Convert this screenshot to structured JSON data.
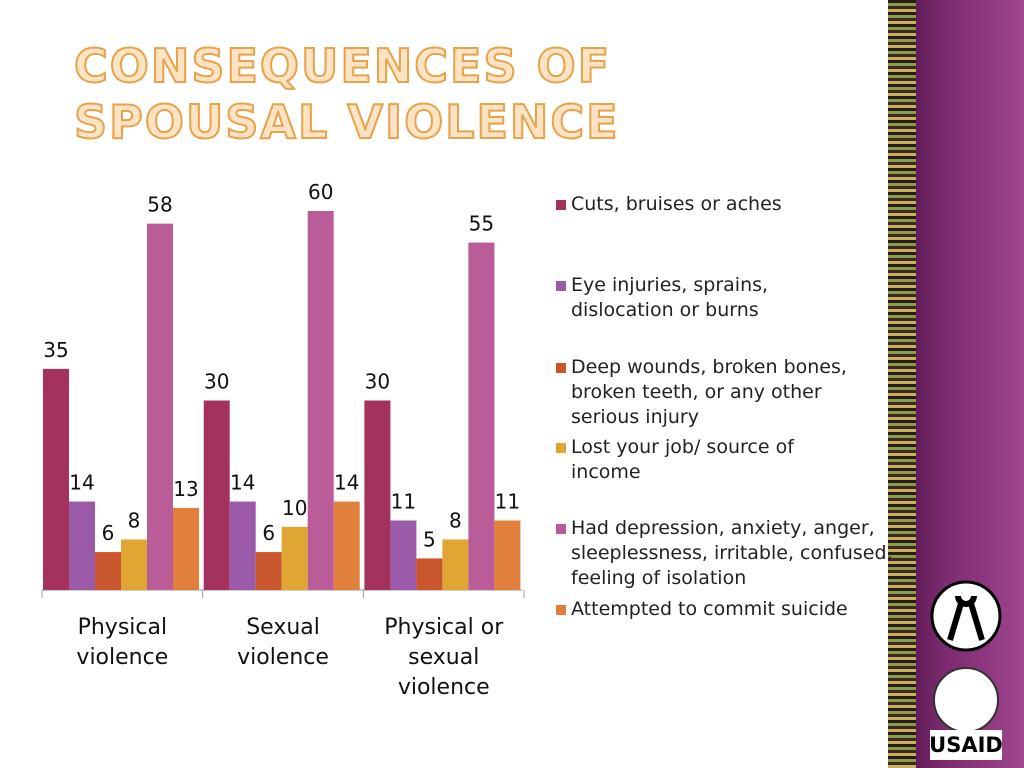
{
  "chart_data": {
    "type": "bar",
    "title": "CONSEQUENCES OF SPOUSAL VIOLENCE",
    "categories": [
      "Physical violence",
      "Sexual violence",
      "Physical or sexual violence"
    ],
    "series": [
      {
        "name": "Cuts, bruises or aches",
        "color": "#a3325c",
        "values": [
          35,
          30,
          30
        ]
      },
      {
        "name": "Eye injuries, sprains, dislocation or burns",
        "color": "#9a5aa8",
        "values": [
          14,
          14,
          11
        ]
      },
      {
        "name": "Deep wounds, broken bones, broken teeth, or any other serious injury",
        "color": "#c9562c",
        "values": [
          6,
          6,
          5
        ]
      },
      {
        "name": "Lost your job/ source of income",
        "color": "#e1a533",
        "values": [
          8,
          10,
          8
        ]
      },
      {
        "name": "Had depression, anxiety, anger, sleeplessness, irritable, confused, feeling of isolation",
        "color": "#b95c98",
        "values": [
          58,
          60,
          55
        ]
      },
      {
        "name": "Attempted to commit suicide",
        "color": "#e0803c",
        "values": [
          13,
          14,
          11
        ]
      }
    ]
  },
  "logo": "USAID"
}
